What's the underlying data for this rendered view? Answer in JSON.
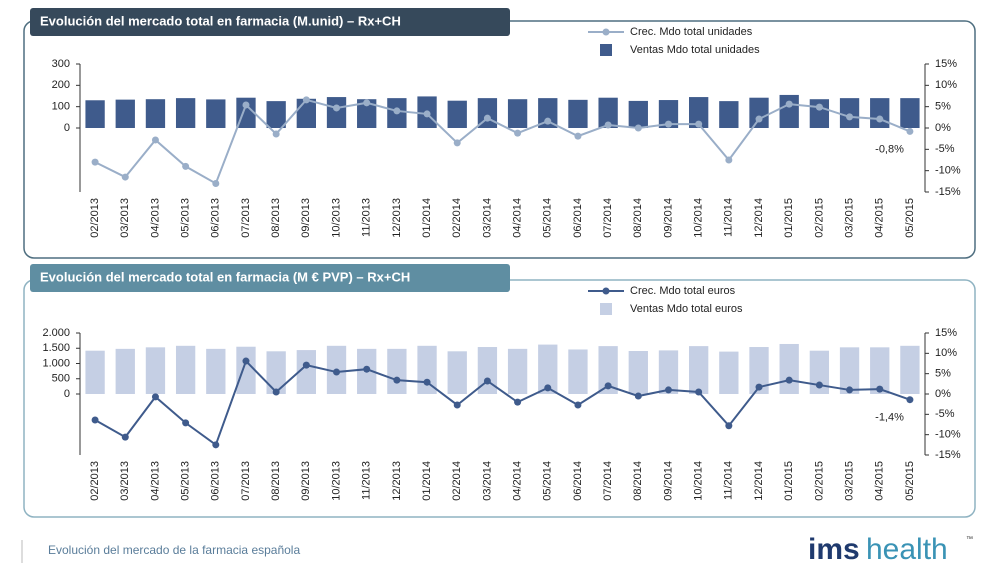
{
  "chart_data": [
    {
      "type": "bar-line",
      "title": "Evolución del mercado total en farmacia (M.unid) – Rx+CH",
      "categories": [
        "02/2013",
        "03/2013",
        "04/2013",
        "05/2013",
        "06/2013",
        "07/2013",
        "08/2013",
        "09/2013",
        "10/2013",
        "11/2013",
        "12/2013",
        "01/2014",
        "02/2014",
        "03/2014",
        "04/2014",
        "05/2014",
        "06/2014",
        "07/2014",
        "08/2014",
        "09/2014",
        "10/2014",
        "11/2014",
        "12/2014",
        "01/2015",
        "02/2015",
        "03/2015",
        "04/2015",
        "05/2015"
      ],
      "series": [
        {
          "name": "Crec. Mdo total unidades",
          "type": "line",
          "axis": "y2",
          "color": "#9aaec8",
          "values": [
            -8,
            -11.5,
            -2.8,
            -9,
            -13,
            5.4,
            -1.4,
            6.6,
            4.7,
            5.9,
            4,
            3.3,
            -3.5,
            2.3,
            -1.2,
            1.6,
            -1.9,
            0.7,
            0,
            0.9,
            0.9,
            -7.5,
            2.1,
            5.6,
            4.9,
            2.6,
            2.1,
            -0.8
          ],
          "value_labels": [
            null,
            null,
            null,
            null,
            null,
            null,
            null,
            null,
            null,
            null,
            null,
            null,
            null,
            null,
            null,
            null,
            null,
            null,
            null,
            null,
            null,
            null,
            null,
            null,
            null,
            null,
            null,
            "-0,8%"
          ]
        },
        {
          "name": "Ventas Mdo total unidades",
          "type": "bar",
          "color": "#3f5b8c",
          "values": [
            130,
            133,
            135,
            140,
            134,
            142,
            126,
            137,
            145,
            135,
            140,
            148,
            128,
            140,
            135,
            140,
            132,
            142,
            127,
            131,
            145,
            126,
            142,
            155,
            135,
            140,
            140,
            140
          ]
        }
      ],
      "ylim": [
        -300,
        300
      ],
      "yticks": [
        0,
        100,
        200,
        300
      ],
      "y2lim": [
        -15,
        15
      ],
      "y2ticks": [
        {
          "value": -15,
          "label": "-15%"
        },
        {
          "value": -10,
          "label": "-10%"
        },
        {
          "value": -5,
          "label": "-5%"
        },
        {
          "value": 0,
          "label": "0%"
        },
        {
          "value": 5,
          "label": "5%"
        },
        {
          "value": 10,
          "label": "10%"
        },
        {
          "value": 15,
          "label": "15%"
        }
      ],
      "legend": "top-right"
    },
    {
      "type": "bar-line",
      "title": "Evolución del mercado total en farmacia (M € PVP) – Rx+CH",
      "categories": [
        "02/2013",
        "03/2013",
        "04/2013",
        "05/2013",
        "06/2013",
        "07/2013",
        "08/2013",
        "09/2013",
        "10/2013",
        "11/2013",
        "12/2013",
        "01/2014",
        "02/2014",
        "03/2014",
        "04/2014",
        "05/2014",
        "06/2014",
        "07/2014",
        "08/2014",
        "09/2014",
        "10/2014",
        "11/2014",
        "12/2014",
        "01/2015",
        "02/2015",
        "03/2015",
        "04/2015",
        "05/2015"
      ],
      "series": [
        {
          "name": "Crec. Mdo total euros",
          "type": "line",
          "axis": "y2",
          "color": "#3f5b8c",
          "values": [
            -6.4,
            -10.6,
            -0.7,
            -7.1,
            -12.5,
            8.1,
            0.5,
            7.1,
            5.4,
            6.1,
            3.4,
            2.9,
            -2.7,
            3.2,
            -2,
            1.5,
            -2.7,
            2,
            -0.5,
            1,
            0.5,
            -7.8,
            1.7,
            3.4,
            2.2,
            1,
            1.2,
            -1.4
          ],
          "value_labels": [
            null,
            null,
            null,
            null,
            null,
            null,
            null,
            null,
            null,
            null,
            null,
            null,
            null,
            null,
            null,
            null,
            null,
            null,
            null,
            null,
            null,
            null,
            null,
            null,
            null,
            null,
            null,
            "-1,4%"
          ]
        },
        {
          "name": "Ventas Mdo total euros",
          "type": "bar",
          "color": "#c5cfe4",
          "values": [
            1420,
            1480,
            1530,
            1580,
            1480,
            1550,
            1400,
            1440,
            1580,
            1480,
            1480,
            1580,
            1400,
            1540,
            1480,
            1620,
            1460,
            1570,
            1410,
            1430,
            1570,
            1390,
            1540,
            1640,
            1420,
            1530,
            1530,
            1580
          ]
        }
      ],
      "ylim": [
        -2000,
        2000
      ],
      "yticks": [
        0,
        500,
        {
          "value": 1000,
          "label": "1.000"
        },
        {
          "value": 1500,
          "label": "1.500"
        },
        {
          "value": 2000,
          "label": "2.000"
        }
      ],
      "y2lim": [
        -15,
        15
      ],
      "y2ticks": [
        {
          "value": -15,
          "label": "-15%"
        },
        {
          "value": -10,
          "label": "-10%"
        },
        {
          "value": -5,
          "label": "-5%"
        },
        {
          "value": 0,
          "label": "0%"
        },
        {
          "value": 5,
          "label": "5%"
        },
        {
          "value": 10,
          "label": "10%"
        },
        {
          "value": 15,
          "label": "15%"
        }
      ],
      "legend": "top-right"
    }
  ],
  "footer": {
    "title": "Evolución del mercado de la farmacia española",
    "logo_ims": "ims",
    "logo_health": "health",
    "logo_tm": "™"
  }
}
